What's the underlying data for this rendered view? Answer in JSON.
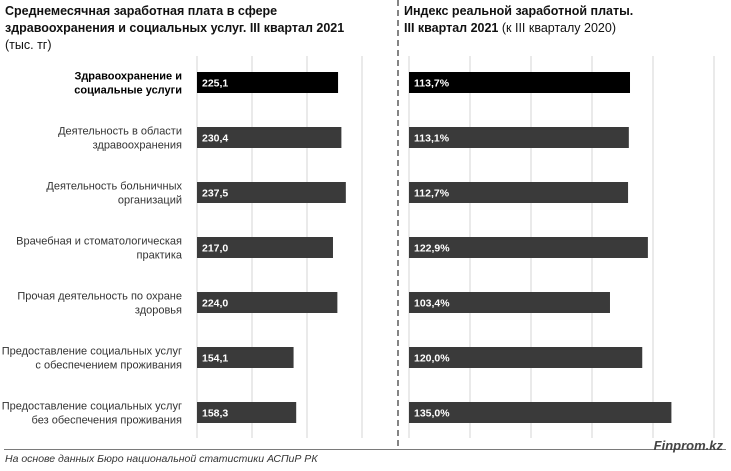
{
  "left_title": {
    "bold": "Среднемесячная заработная плата в сфере здравоохранения и социальных услуг. III квартал 2021",
    "normal": " (тыс. тг)"
  },
  "right_title": {
    "bold_line1": "Индекс реальной заработной платы.",
    "bold_line2": "III квартал 2021",
    "normal": " (к III кварталу 2020)"
  },
  "chart_data": [
    {
      "type": "bar",
      "orientation": "horizontal",
      "categories": [
        "Здравоохранение и социальные услуги",
        "Деятельность в области здравоохранения",
        "Деятельность больничных организаций",
        "Врачебная и стоматологическая практика",
        "Прочая деятельность по охране здоровья",
        "Предоставление социальных услуг с обеспечением проживания",
        "Предоставление социальных услуг без обеспечения проживания"
      ],
      "category_lines": [
        [
          "Здравоохранение и",
          "социальные услуги"
        ],
        [
          "Деятельность в области",
          "здравоохранения"
        ],
        [
          "Деятельность больничных",
          "организаций"
        ],
        [
          "Врачебная и стоматологическая",
          "практика"
        ],
        [
          "Прочая деятельность по охране",
          "здоровья"
        ],
        [
          "Предоставление социальных услуг",
          "с обеспечением проживания"
        ],
        [
          "Предоставление социальных услуг",
          "без обеспечения проживания"
        ]
      ],
      "values": [
        225.1,
        230.4,
        237.5,
        217.0,
        224.0,
        154.1,
        158.3
      ],
      "labels": [
        "225,1",
        "230,4",
        "237,5",
        "217,0",
        "224,0",
        "154,1",
        "158,3"
      ],
      "xlim": [
        0,
        300
      ],
      "highlight_index": 0
    },
    {
      "type": "bar",
      "orientation": "horizontal",
      "values": [
        113.7,
        113.1,
        112.7,
        122.9,
        103.4,
        120.0,
        135.0
      ],
      "labels": [
        "113,7%",
        "113,1%",
        "112,7%",
        "122,9%",
        "103,4%",
        "120,0%",
        "135,0%"
      ],
      "xlim": [
        0,
        160
      ],
      "highlight_index": 0
    }
  ],
  "colors": {
    "highlight": "#000000",
    "bar": "#3a3a3a",
    "grid": "#d4d4d4"
  },
  "footer": {
    "source": "На основе данных Бюро национальной статистики АСПиР РК",
    "brand": "Finprom.kz"
  }
}
